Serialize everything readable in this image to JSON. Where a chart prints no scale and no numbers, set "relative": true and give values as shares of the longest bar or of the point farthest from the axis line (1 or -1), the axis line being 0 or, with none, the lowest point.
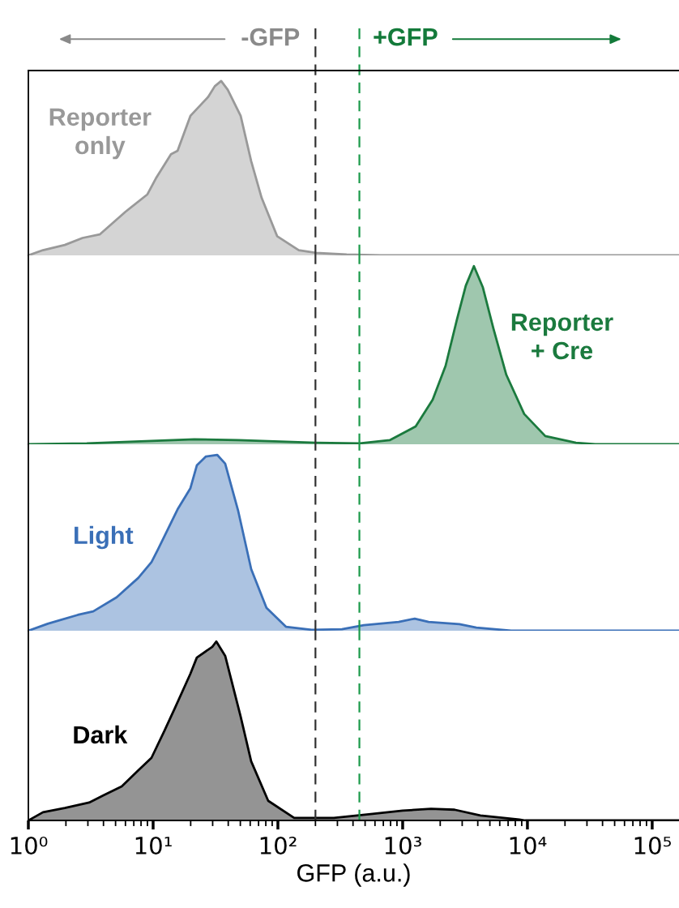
{
  "chart_data": [
    {
      "type": "area",
      "relative": true,
      "xlim": [
        1,
        164000
      ],
      "log": "x",
      "legend": false,
      "grid": false,
      "annotations": [
        "-GFP",
        "+GFP"
      ],
      "ref_lines": [
        {
          "axis": "x",
          "value": 200,
          "color": "#333333",
          "line_style": "dashed"
        },
        {
          "axis": "x",
          "value": 450,
          "color": "#1b9a4a",
          "line_style": "dashed"
        }
      ],
      "series": [
        {
          "name": "Reporter\nonly",
          "color": "#999999",
          "x": [
            1,
            1.31,
            1.96,
            2.72,
            3.73,
            6.0,
            9.0,
            10.5,
            13.9,
            15.7,
            19.9,
            27.7,
            31.2,
            35.1,
            39.6,
            50.3,
            61.1,
            74.1,
            98.6,
            147,
            202,
            356,
            668,
            164000
          ],
          "values": [
            0,
            0.03,
            0.06,
            0.1,
            0.12,
            0.25,
            0.35,
            0.44,
            0.58,
            0.6,
            0.8,
            0.91,
            0.97,
            1.0,
            0.95,
            0.8,
            0.54,
            0.33,
            0.11,
            0.03,
            0.014,
            0.005,
            0,
            0
          ]
        }
      ]
    },
    {
      "type": "area",
      "relative": true,
      "xlim": [
        1,
        164000
      ],
      "log": "x",
      "legend": false,
      "grid": false,
      "ref_lines": [
        {
          "axis": "x",
          "value": 200,
          "color": "#333333",
          "line_style": "dashed"
        },
        {
          "axis": "x",
          "value": 450,
          "color": "#1b9a4a",
          "line_style": "dashed"
        }
      ],
      "series": [
        {
          "name": "Reporter\n+ Cre",
          "color": "#1b7a3e",
          "x": [
            1,
            2.94,
            21.4,
            48,
            202,
            453,
            787,
            1271,
            1740,
            2208,
            2723,
            3206,
            3724,
            4395,
            5336,
            6772,
            9420,
            13900,
            24500,
            35000,
            164000
          ],
          "values": [
            0,
            0.005,
            0.028,
            0.023,
            0.009,
            0.005,
            0.023,
            0.1,
            0.25,
            0.44,
            0.7,
            0.89,
            1.0,
            0.88,
            0.65,
            0.39,
            0.17,
            0.046,
            0.009,
            0,
            0
          ]
        }
      ]
    },
    {
      "type": "area",
      "relative": true,
      "xlim": [
        1,
        164000
      ],
      "log": "x",
      "legend": false,
      "grid": false,
      "ref_lines": [
        {
          "axis": "x",
          "value": 200,
          "color": "#333333",
          "line_style": "dashed"
        },
        {
          "axis": "x",
          "value": 450,
          "color": "#1b9a4a",
          "line_style": "dashed"
        }
      ],
      "series": [
        {
          "name": "Light",
          "color": "#3a6fb7",
          "x": [
            1,
            1.43,
            2.49,
            3.31,
            5.1,
            7.6,
            9.7,
            10.9,
            15.7,
            19.9,
            22.4,
            26.4,
            32.6,
            37.8,
            48.1,
            61.1,
            81,
            116,
            187,
            326,
            488,
            929,
            1250,
            1614,
            2851,
            3898,
            7410,
            164000
          ],
          "values": [
            0,
            0.04,
            0.09,
            0.11,
            0.19,
            0.3,
            0.39,
            0.46,
            0.69,
            0.81,
            0.94,
            0.99,
            1.0,
            0.95,
            0.68,
            0.35,
            0.13,
            0.023,
            0.005,
            0.009,
            0.032,
            0.05,
            0.069,
            0.05,
            0.037,
            0.018,
            0,
            0
          ]
        }
      ]
    },
    {
      "type": "area",
      "relative": true,
      "xlim": [
        1,
        164000
      ],
      "log": "x",
      "legend": false,
      "grid": false,
      "xlabel": "GFP (a.u.)",
      "xticks": [
        {
          "value": 1,
          "label": "10⁰"
        },
        {
          "value": 10,
          "label": "10¹"
        },
        {
          "value": 100,
          "label": "10²"
        },
        {
          "value": 1000,
          "label": "10³"
        },
        {
          "value": 10000,
          "label": "10⁴"
        },
        {
          "value": 100000,
          "label": "10⁵"
        }
      ],
      "ref_lines": [
        {
          "axis": "x",
          "value": 200,
          "color": "#333333",
          "line_style": "dashed"
        },
        {
          "axis": "x",
          "value": 450,
          "color": "#1b9a4a",
          "line_style": "dashed"
        }
      ],
      "series": [
        {
          "name": "Dark",
          "color": "#000000",
          "x": [
            1,
            1.31,
            1.96,
            3.07,
            4.0,
            5.6,
            7.6,
            9.7,
            12.3,
            15.0,
            19.9,
            22.4,
            29.8,
            32.1,
            37.8,
            50.3,
            61.1,
            83.6,
            135,
            281,
            575,
            1000,
            1687,
            2606,
            4198,
            8610,
            9600,
            164000
          ],
          "values": [
            0,
            0.046,
            0.07,
            0.1,
            0.14,
            0.19,
            0.28,
            0.35,
            0.5,
            0.63,
            0.82,
            0.91,
            0.97,
            1.0,
            0.92,
            0.58,
            0.33,
            0.11,
            0.014,
            0.014,
            0.037,
            0.055,
            0.065,
            0.06,
            0.028,
            0.005,
            0,
            0
          ]
        }
      ]
    }
  ]
}
